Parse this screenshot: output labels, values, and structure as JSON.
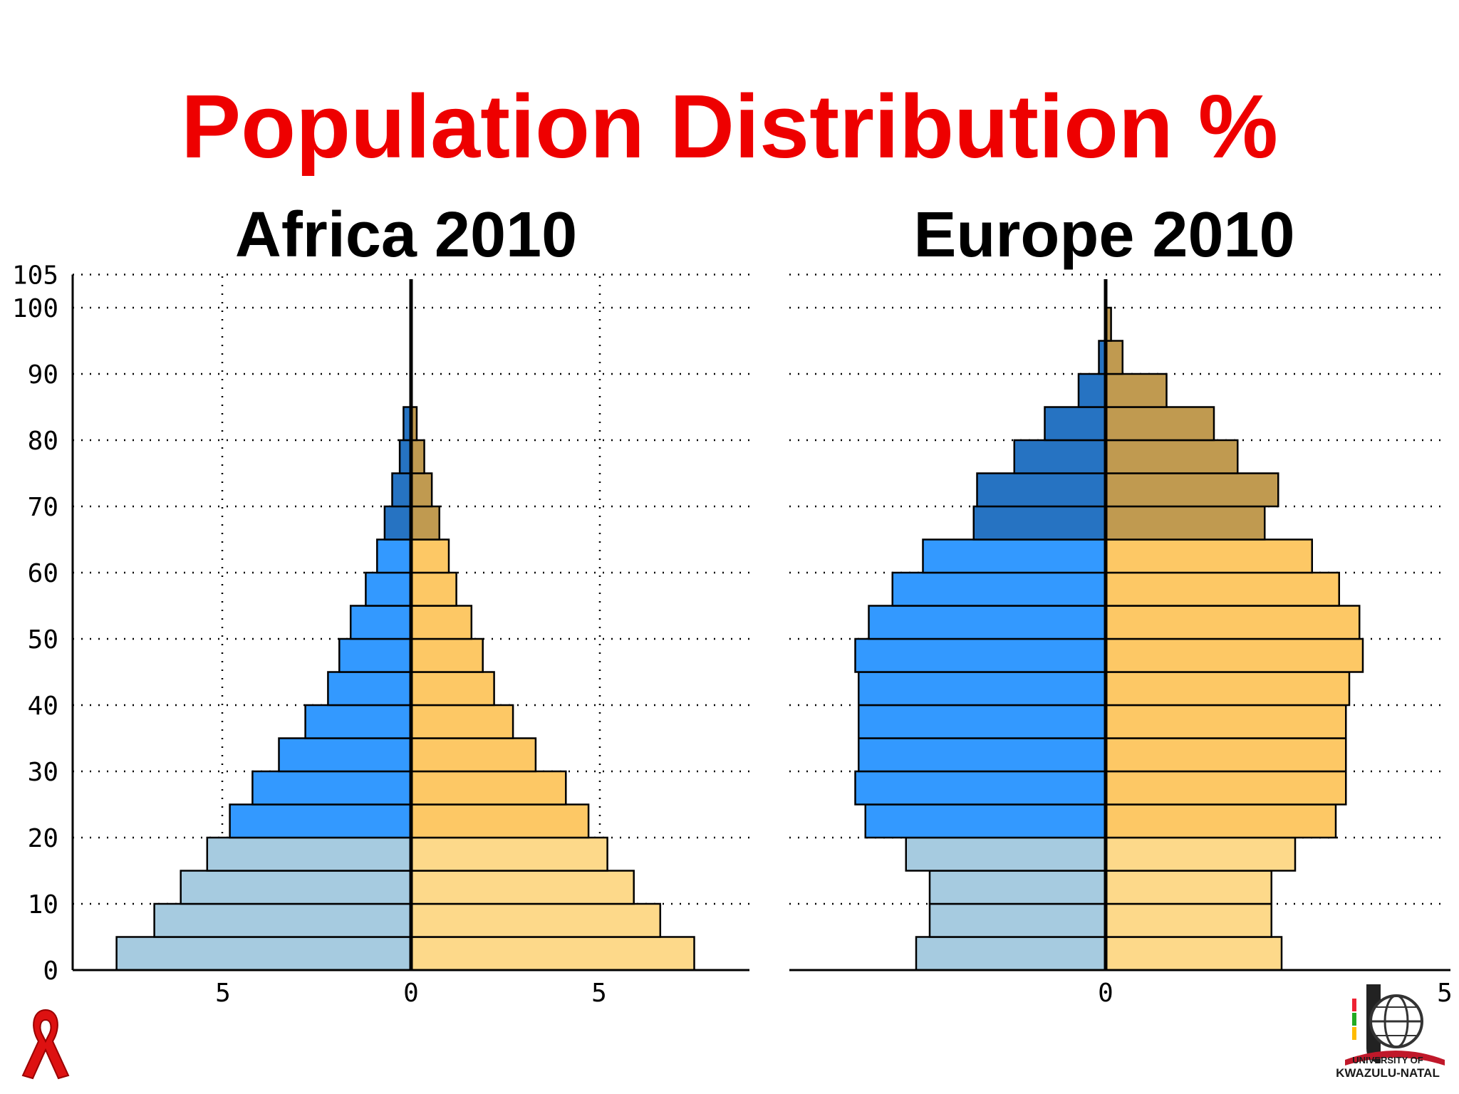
{
  "title": "Population Distribution %",
  "colors": {
    "title": "#ee0000",
    "male_young": "#a6cbe0",
    "male_working": "#3399ff",
    "male_old": "#2673c2",
    "female_young": "#fdd98a",
    "female_working": "#fdc865",
    "female_old": "#c09a50",
    "grid": "#000000"
  },
  "logos": {
    "ribbon": "red-aids-ribbon-icon",
    "university": "ukzn-crest-icon",
    "university_text_line1": "UNIVERSITY OF",
    "university_text_line2": "KWAZULU-NATAL"
  },
  "chart_data": [
    {
      "type": "bar",
      "subtype": "population-pyramid",
      "title": "Africa 2010",
      "y_ticks": [
        "0",
        "10",
        "20",
        "30",
        "40",
        "50",
        "60",
        "70",
        "80",
        "90",
        "100",
        "105"
      ],
      "x_ticks": [
        "5",
        "0",
        "5"
      ],
      "x_tick_values": [
        -5,
        0,
        5
      ],
      "xlim": [
        -9,
        9
      ],
      "ylim": [
        0,
        105
      ],
      "age_groups": [
        0,
        5,
        10,
        15,
        20,
        25,
        30,
        35,
        40,
        45,
        50,
        55,
        60,
        65,
        70,
        75,
        80,
        85,
        90,
        95,
        100
      ],
      "series": [
        {
          "name": "",
          "side": "left",
          "values": [
            7.8,
            6.8,
            6.1,
            5.4,
            4.8,
            4.2,
            3.5,
            2.8,
            2.2,
            1.9,
            1.6,
            1.2,
            0.9,
            0.7,
            0.5,
            0.3,
            0.2,
            0,
            0,
            0,
            0
          ]
        },
        {
          "name": "",
          "side": "right",
          "values": [
            7.5,
            6.6,
            5.9,
            5.2,
            4.7,
            4.1,
            3.3,
            2.7,
            2.2,
            1.9,
            1.6,
            1.2,
            1.0,
            0.75,
            0.55,
            0.35,
            0.15,
            0,
            0,
            0,
            0
          ]
        }
      ],
      "grid": true
    },
    {
      "type": "bar",
      "subtype": "population-pyramid",
      "title": "Europe 2010",
      "y_ticks": [],
      "x_ticks": [
        "0",
        "5"
      ],
      "x_tick_values": [
        0,
        5
      ],
      "xlim": [
        -5,
        5
      ],
      "ylim": [
        0,
        105
      ],
      "age_groups": [
        0,
        5,
        10,
        15,
        20,
        25,
        30,
        35,
        40,
        45,
        50,
        55,
        60,
        65,
        70,
        75,
        80,
        85,
        90,
        95,
        100
      ],
      "series": [
        {
          "name": "",
          "side": "left",
          "values": [
            2.8,
            2.6,
            2.6,
            2.95,
            3.55,
            3.7,
            3.65,
            3.65,
            3.65,
            3.7,
            3.5,
            3.15,
            2.7,
            1.95,
            1.9,
            1.35,
            0.9,
            0.4,
            0.1,
            0,
            0
          ]
        },
        {
          "name": "",
          "side": "right",
          "values": [
            2.6,
            2.45,
            2.45,
            2.8,
            3.4,
            3.55,
            3.55,
            3.55,
            3.6,
            3.8,
            3.75,
            3.45,
            3.05,
            2.35,
            2.55,
            1.95,
            1.6,
            0.9,
            0.25,
            0.08,
            0
          ]
        }
      ],
      "grid": true
    }
  ]
}
